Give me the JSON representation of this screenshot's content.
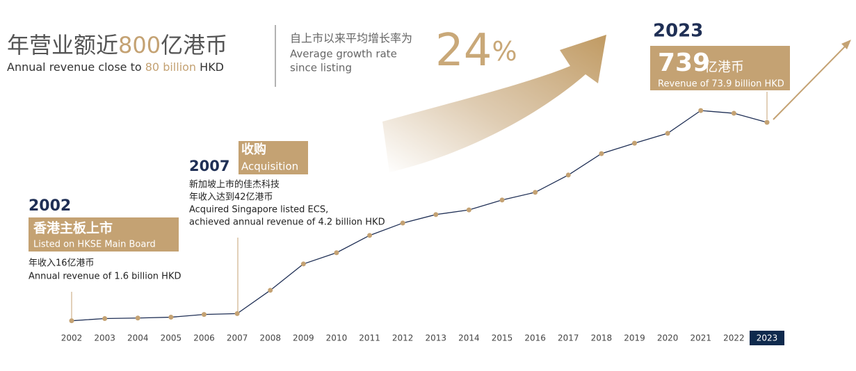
{
  "chart_data": {
    "type": "line",
    "title": {
      "zh": [
        "年营业额近",
        "800",
        "亿港币"
      ],
      "en": [
        "Annual revenue close to",
        "80 billion",
        "HKD"
      ]
    },
    "subtitle": {
      "zh": "自上市以来平均增长率为",
      "en": [
        "Average growth rate",
        "since listing"
      ],
      "rate": "24",
      "unit": "%"
    },
    "categories": [
      "2002",
      "2003",
      "2004",
      "2005",
      "2006",
      "2007",
      "2008",
      "2009",
      "2010",
      "2011",
      "2012",
      "2013",
      "2014",
      "2015",
      "2016",
      "2017",
      "2018",
      "2019",
      "2020",
      "2021",
      "2022",
      "2023"
    ],
    "values": [
      16,
      24,
      26,
      29,
      39,
      42,
      127,
      223,
      264,
      327,
      372,
      403,
      420,
      456,
      484,
      547,
      625,
      663,
      699,
      782,
      772,
      739
    ],
    "ylim": [
      0,
      800
    ],
    "color": "#1f2f55",
    "marker_color": "#c4a273",
    "annotations": [
      {
        "year": "2002",
        "title": "香港主板上市",
        "subtitle": "Listed on HKSE Main Board",
        "lines": [
          "年收入16亿港币",
          "Annual revenue of 1.6 billion HKD"
        ]
      },
      {
        "year": "2007",
        "title": "收购",
        "subtitle": "Acquisition",
        "lines": [
          "新加坡上市的佳杰科技",
          "年收入达到42亿港币",
          "Acquired Singapore listed ECS,",
          "achieved annual revenue of 4.2 billion HKD"
        ]
      },
      {
        "year": "2023",
        "unit": "亿港币",
        "subtitle": "Revenue of 73.9 billion HKD"
      }
    ]
  }
}
